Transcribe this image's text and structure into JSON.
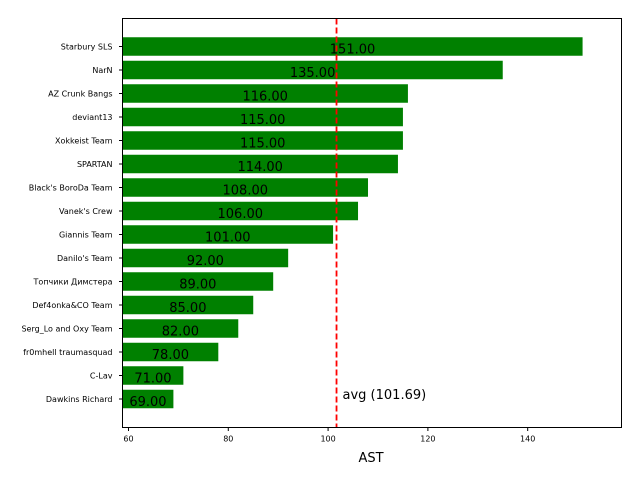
{
  "chart_data": {
    "type": "bar",
    "orientation": "horizontal",
    "categories": [
      "Starbury SLS",
      "NarN",
      "AZ Crunk Bangs",
      "deviant13",
      "Xokkeist Team",
      "SPARTAN",
      "Black's BoroDa Team",
      "Vanek's Crew",
      "Giannis Team",
      "Danilo's Team",
      "Топчики Димстера",
      "Def4onka&CO Team",
      "Serg_Lo and Oxy Team",
      "fr0mhell traumasquad",
      "C-Lav",
      "Dawkins Richard"
    ],
    "values": [
      151,
      135,
      116,
      115,
      115,
      114,
      108,
      106,
      101,
      92,
      89,
      85,
      82,
      78,
      71,
      69
    ],
    "value_labels": [
      "151.00",
      "135.00",
      "116.00",
      "115.00",
      "115.00",
      "114.00",
      "108.00",
      "106.00",
      "101.00",
      "92.00",
      "89.00",
      "85.00",
      "82.00",
      "78.00",
      "71.00",
      "69.00"
    ],
    "xlabel": "AST",
    "ylabel": "",
    "title": "",
    "xlim": [
      58.8,
      158.8
    ],
    "xticks": [
      60,
      80,
      100,
      120,
      140
    ],
    "bar_color": "#008000",
    "reference_line": {
      "value": 101.69,
      "label": "avg (101.69)",
      "color": "#ff0000",
      "style": "dashed"
    },
    "grid": false
  }
}
